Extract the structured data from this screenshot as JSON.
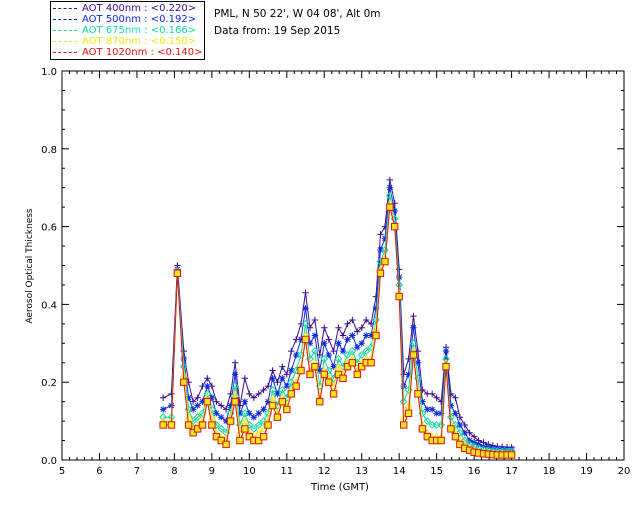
{
  "info": {
    "site": "PML, N 50 22', W 04 08', Alt 0m",
    "date": "Data from: 19 Sep 2015"
  },
  "legend": [
    {
      "label": "AOT  400nm : <0.220>",
      "color": "#3b0a8c",
      "marker": "plus"
    },
    {
      "label": "AOT  500nm : <0.192>",
      "color": "#0a2be0",
      "marker": "star"
    },
    {
      "label": "AOT  675nm : <0.166>",
      "color": "#14d9a0",
      "marker": "diamond"
    },
    {
      "label": "AOT  870nm : <0.150>",
      "color": "#f2e619",
      "marker": "triangle"
    },
    {
      "label": "AOT 1020nm : <0.140>",
      "color": "#d91414",
      "marker": "square"
    }
  ],
  "chart_data": {
    "type": "line",
    "xlabel": "Time (GMT)",
    "ylabel": "Aerosol Optical Thickness",
    "xlim": [
      5,
      20
    ],
    "ylim": [
      0,
      1.0
    ],
    "xticks": [
      "5",
      "6",
      "7",
      "8",
      "9",
      "10",
      "11",
      "12",
      "13",
      "14",
      "15",
      "16",
      "17",
      "18",
      "19",
      "20"
    ],
    "yticks": [
      "0.0",
      "0.2",
      "0.4",
      "0.6",
      "0.8",
      "1.0"
    ],
    "x": [
      7.7,
      7.92,
      8.08,
      8.25,
      8.38,
      8.5,
      8.62,
      8.75,
      8.88,
      9.0,
      9.12,
      9.25,
      9.38,
      9.5,
      9.62,
      9.75,
      9.88,
      10.0,
      10.12,
      10.25,
      10.38,
      10.5,
      10.62,
      10.75,
      10.88,
      11.0,
      11.12,
      11.25,
      11.38,
      11.5,
      11.62,
      11.75,
      11.88,
      12.0,
      12.12,
      12.25,
      12.38,
      12.5,
      12.62,
      12.75,
      12.88,
      13.0,
      13.12,
      13.25,
      13.38,
      13.5,
      13.62,
      13.75,
      13.88,
      14.0,
      14.12,
      14.25,
      14.38,
      14.5,
      14.62,
      14.75,
      14.88,
      15.0,
      15.12,
      15.25,
      15.38,
      15.5,
      15.62,
      15.75,
      15.88,
      16.0,
      16.12,
      16.25,
      16.38,
      16.5,
      16.62,
      16.75,
      16.88,
      17.0
    ],
    "series": [
      {
        "name": "AOT  400nm : <0.220>",
        "values": [
          0.16,
          0.17,
          0.5,
          0.28,
          0.2,
          0.15,
          0.16,
          0.19,
          0.21,
          0.19,
          0.15,
          0.14,
          0.13,
          0.17,
          0.25,
          0.14,
          0.21,
          0.17,
          0.16,
          0.17,
          0.18,
          0.19,
          0.23,
          0.2,
          0.24,
          0.22,
          0.28,
          0.31,
          0.35,
          0.43,
          0.34,
          0.36,
          0.27,
          0.34,
          0.31,
          0.28,
          0.34,
          0.32,
          0.35,
          0.36,
          0.33,
          0.34,
          0.36,
          0.35,
          0.42,
          0.58,
          0.6,
          0.72,
          0.66,
          0.49,
          0.22,
          0.26,
          0.37,
          0.28,
          0.18,
          0.17,
          0.17,
          0.16,
          0.15,
          0.29,
          0.17,
          0.16,
          0.11,
          0.09,
          0.07,
          0.06,
          0.05,
          0.045,
          0.04,
          0.037,
          0.035,
          0.034,
          0.033,
          0.033
        ]
      },
      {
        "name": "AOT  500nm : <0.192>",
        "values": [
          0.13,
          0.14,
          0.49,
          0.26,
          0.16,
          0.13,
          0.14,
          0.15,
          0.19,
          0.16,
          0.12,
          0.11,
          0.1,
          0.14,
          0.22,
          0.12,
          0.15,
          0.12,
          0.11,
          0.12,
          0.13,
          0.15,
          0.21,
          0.17,
          0.21,
          0.19,
          0.23,
          0.27,
          0.31,
          0.39,
          0.3,
          0.32,
          0.23,
          0.3,
          0.27,
          0.24,
          0.3,
          0.28,
          0.31,
          0.32,
          0.29,
          0.3,
          0.32,
          0.32,
          0.39,
          0.54,
          0.57,
          0.7,
          0.64,
          0.47,
          0.19,
          0.22,
          0.34,
          0.25,
          0.15,
          0.13,
          0.13,
          0.12,
          0.12,
          0.28,
          0.14,
          0.12,
          0.09,
          0.07,
          0.05,
          0.045,
          0.04,
          0.035,
          0.033,
          0.031,
          0.03,
          0.029,
          0.028,
          0.028
        ]
      },
      {
        "name": "AOT  675nm : <0.166>",
        "values": [
          0.11,
          0.11,
          0.485,
          0.24,
          0.13,
          0.1,
          0.11,
          0.12,
          0.17,
          0.13,
          0.09,
          0.08,
          0.07,
          0.12,
          0.19,
          0.09,
          0.12,
          0.09,
          0.08,
          0.09,
          0.1,
          0.12,
          0.18,
          0.14,
          0.18,
          0.16,
          0.2,
          0.23,
          0.27,
          0.35,
          0.26,
          0.28,
          0.19,
          0.26,
          0.23,
          0.21,
          0.26,
          0.24,
          0.27,
          0.28,
          0.25,
          0.27,
          0.28,
          0.29,
          0.36,
          0.51,
          0.54,
          0.68,
          0.62,
          0.45,
          0.15,
          0.18,
          0.3,
          0.21,
          0.12,
          0.1,
          0.09,
          0.09,
          0.09,
          0.26,
          0.11,
          0.09,
          0.07,
          0.05,
          0.04,
          0.035,
          0.03,
          0.027,
          0.025,
          0.024,
          0.023,
          0.022,
          0.022,
          0.022
        ]
      },
      {
        "name": "AOT  870nm : <0.150>",
        "values": [
          0.1,
          0.1,
          0.48,
          0.22,
          0.11,
          0.08,
          0.09,
          0.1,
          0.16,
          0.11,
          0.07,
          0.06,
          0.05,
          0.11,
          0.17,
          0.07,
          0.1,
          0.07,
          0.06,
          0.07,
          0.08,
          0.1,
          0.16,
          0.12,
          0.16,
          0.14,
          0.18,
          0.2,
          0.24,
          0.32,
          0.23,
          0.25,
          0.16,
          0.23,
          0.21,
          0.19,
          0.24,
          0.22,
          0.25,
          0.26,
          0.23,
          0.25,
          0.26,
          0.26,
          0.34,
          0.49,
          0.52,
          0.66,
          0.6,
          0.43,
          0.11,
          0.14,
          0.28,
          0.18,
          0.09,
          0.07,
          0.06,
          0.06,
          0.06,
          0.25,
          0.09,
          0.07,
          0.05,
          0.04,
          0.03,
          0.025,
          0.022,
          0.02,
          0.019,
          0.018,
          0.017,
          0.017,
          0.016,
          0.016
        ]
      },
      {
        "name": "AOT 1020nm : <0.140>",
        "values": [
          0.09,
          0.09,
          0.48,
          0.2,
          0.09,
          0.07,
          0.08,
          0.09,
          0.15,
          0.09,
          0.06,
          0.05,
          0.04,
          0.1,
          0.15,
          0.05,
          0.08,
          0.06,
          0.05,
          0.05,
          0.06,
          0.09,
          0.14,
          0.11,
          0.15,
          0.13,
          0.17,
          0.19,
          0.23,
          0.31,
          0.22,
          0.24,
          0.15,
          0.22,
          0.2,
          0.17,
          0.22,
          0.21,
          0.24,
          0.25,
          0.22,
          0.24,
          0.25,
          0.25,
          0.32,
          0.48,
          0.51,
          0.65,
          0.6,
          0.42,
          0.09,
          0.12,
          0.27,
          0.17,
          0.08,
          0.06,
          0.05,
          0.05,
          0.05,
          0.24,
          0.08,
          0.06,
          0.04,
          0.03,
          0.025,
          0.02,
          0.018,
          0.016,
          0.015,
          0.014,
          0.013,
          0.013,
          0.013,
          0.013
        ]
      }
    ]
  }
}
